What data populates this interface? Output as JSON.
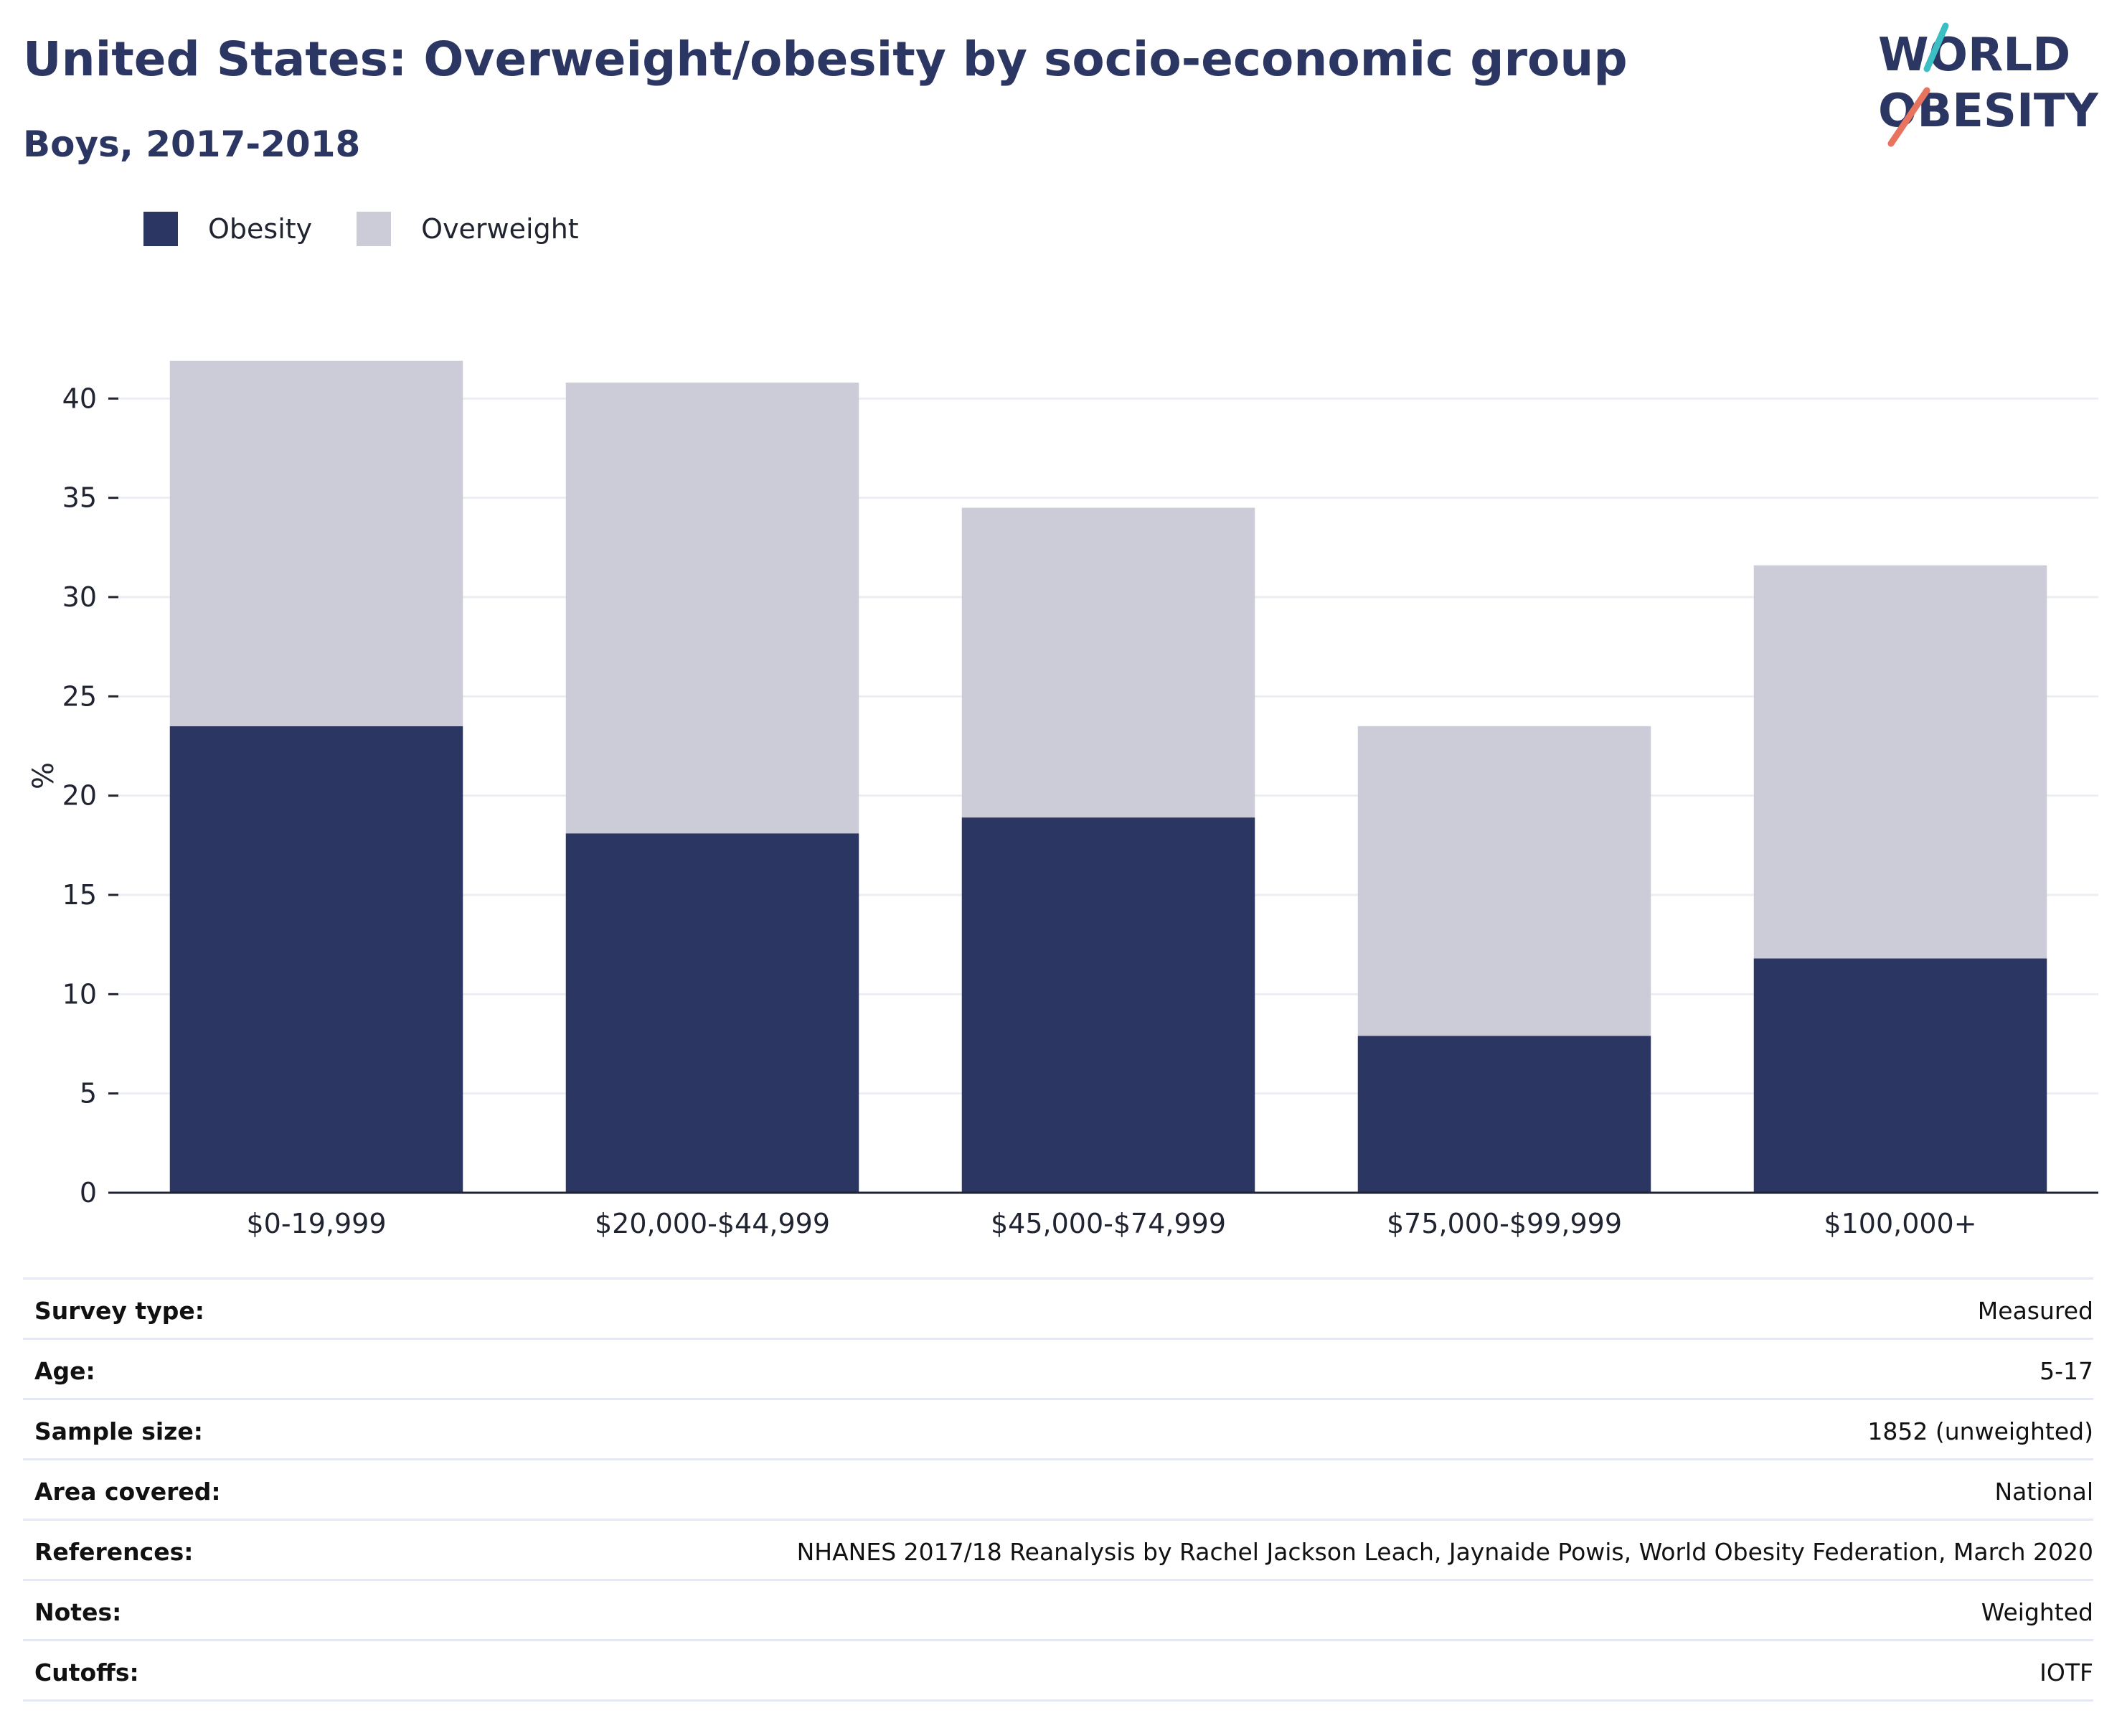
{
  "header": {
    "title": "United States: Overweight/obesity by socio-economic group",
    "subtitle": "Boys, 2017-2018"
  },
  "logo": {
    "line1": "WORLD",
    "line2": "OBESITY",
    "colors": {
      "text": "#2b3663",
      "slash_teal": "#3cbfc4",
      "slash_coral": "#e8735f"
    }
  },
  "legend": [
    {
      "label": "Obesity",
      "color": "#2b3663"
    },
    {
      "label": "Overweight",
      "color": "#cbccd8"
    }
  ],
  "chart_data": {
    "type": "bar",
    "stacked": true,
    "categories": [
      "$0-19,999",
      "$20,000-$44,999",
      "$45,000-$74,999",
      "$75,000-$99,999",
      "$100,000+"
    ],
    "series": [
      {
        "name": "Obesity",
        "color": "#2b3663",
        "values": [
          23.5,
          18.1,
          18.9,
          7.9,
          11.8
        ]
      },
      {
        "name": "Overweight",
        "color": "#cbccd8",
        "values": [
          18.4,
          22.7,
          15.6,
          15.6,
          19.8
        ]
      }
    ],
    "ylabel": "%",
    "xlabel": "",
    "ylim": [
      0,
      42
    ],
    "yticks": [
      0,
      5,
      10,
      15,
      20,
      25,
      30,
      35,
      40
    ],
    "grid": true,
    "legend_position": "top-left"
  },
  "meta": [
    {
      "key": "Survey type:",
      "value": "Measured"
    },
    {
      "key": "Age:",
      "value": "5-17"
    },
    {
      "key": "Sample size:",
      "value": "1852 (unweighted)"
    },
    {
      "key": "Area covered:",
      "value": "National"
    },
    {
      "key": "References:",
      "value": "NHANES 2017/18 Reanalysis by Rachel Jackson Leach, Jaynaide Powis, World Obesity Federation, March 2020"
    },
    {
      "key": "Notes:",
      "value": "Weighted"
    },
    {
      "key": "Cutoffs:",
      "value": "IOTF"
    }
  ]
}
